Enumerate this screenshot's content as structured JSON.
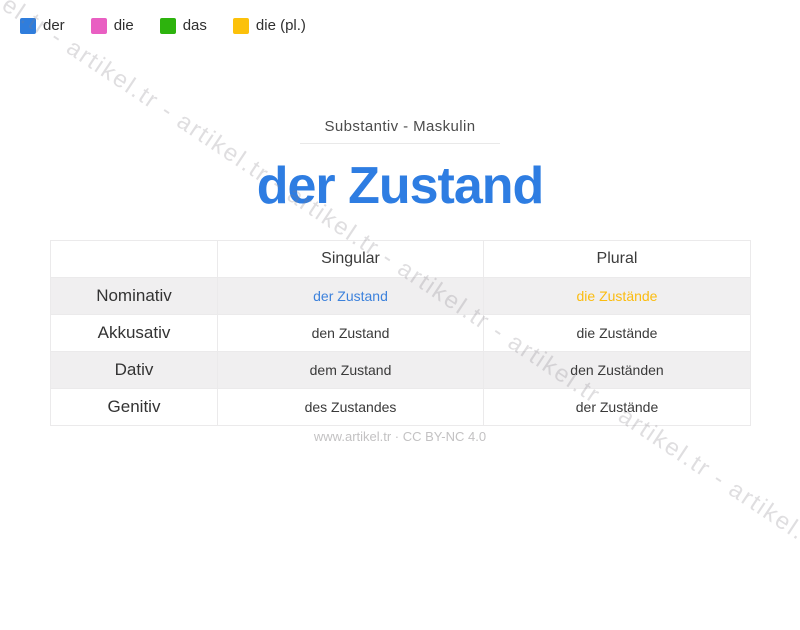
{
  "legend": {
    "items": [
      {
        "label": "der",
        "color": "#2f7ddc"
      },
      {
        "label": "die",
        "color": "#e95fc2"
      },
      {
        "label": "das",
        "color": "#2db30d"
      },
      {
        "label": "die (pl.)",
        "color": "#fcc10a"
      }
    ]
  },
  "header": {
    "word_type": "Substantiv - Maskulin",
    "title": "der Zustand",
    "title_color": "#2e7de2"
  },
  "table": {
    "columns": [
      "",
      "Singular",
      "Plural"
    ],
    "rows": [
      {
        "case": "Nominativ",
        "singular": "der Zustand",
        "plural": "die Zustände",
        "singular_color": "#3d82dc",
        "plural_color": "#fbbc10"
      },
      {
        "case": "Akkusativ",
        "singular": "den Zustand",
        "plural": "die Zustände"
      },
      {
        "case": "Dativ",
        "singular": "dem Zustand",
        "plural": "den Zuständen"
      },
      {
        "case": "Genitiv",
        "singular": "des Zustandes",
        "plural": "der Zustände"
      }
    ]
  },
  "footer": {
    "credit": "www.artikel.tr · CC BY-NC 4.0"
  },
  "watermark": {
    "text": "artikel.tr - artikel.tr - artikel.tr - artikel.tr - artikel.tr - artikel.tr - artikel.tr - artikel.tr - artikel.tr"
  }
}
